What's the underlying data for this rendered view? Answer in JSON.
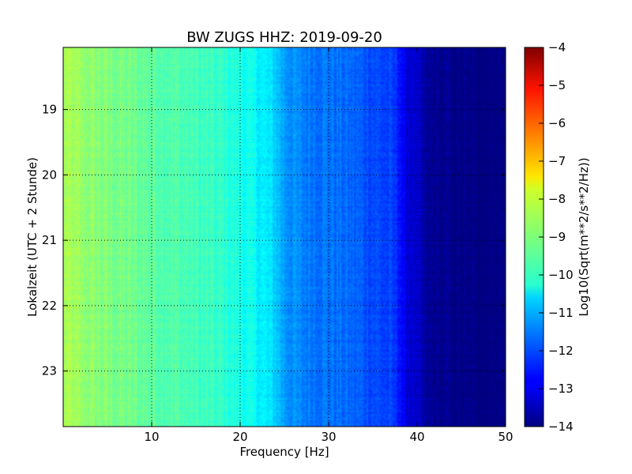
{
  "chart_data": {
    "type": "heatmap",
    "title": "BW ZUGS HHZ: 2019-09-20",
    "xlabel": "Frequency [Hz]",
    "ylabel": "Lokalzeit (UTC + 2 Stunde)",
    "xlim": [
      0,
      50
    ],
    "ylim": [
      18.05,
      23.85
    ],
    "x_ticks": [
      10,
      20,
      30,
      40,
      50
    ],
    "x_tick_labels": [
      "10",
      "20",
      "30",
      "40",
      "50"
    ],
    "y_ticks": [
      19,
      20,
      21,
      22,
      23
    ],
    "y_tick_labels": [
      "19",
      "20",
      "21",
      "22",
      "23"
    ],
    "y_inverted": true,
    "grid": true,
    "colormap": "jet",
    "colorbar": {
      "label": "Log10(Sqrt(m**2/s**2/Hz))",
      "range": [
        -14,
        -4
      ],
      "ticks": [
        -14,
        -13,
        -12,
        -11,
        -10,
        -9,
        -8,
        -7,
        -6,
        -5,
        -4
      ],
      "tick_labels": [
        "−14",
        "−13",
        "−12",
        "−11",
        "−10",
        "−9",
        "−8",
        "−7",
        "−6",
        "−5",
        "−4"
      ]
    },
    "spectrum_profile": {
      "frequency_hz": [
        0,
        2,
        5,
        10,
        15,
        18,
        20,
        22,
        24,
        25,
        27,
        30,
        33,
        35,
        37,
        38,
        38.5,
        40,
        41,
        45,
        50
      ],
      "log10_psd": [
        -8.6,
        -8.8,
        -9.0,
        -9.3,
        -9.6,
        -9.8,
        -10.0,
        -10.3,
        -10.7,
        -11.2,
        -11.5,
        -11.6,
        -11.8,
        -12.0,
        -12.2,
        -12.4,
        -13.0,
        -13.3,
        -13.8,
        -14.0,
        -14.0
      ]
    }
  }
}
